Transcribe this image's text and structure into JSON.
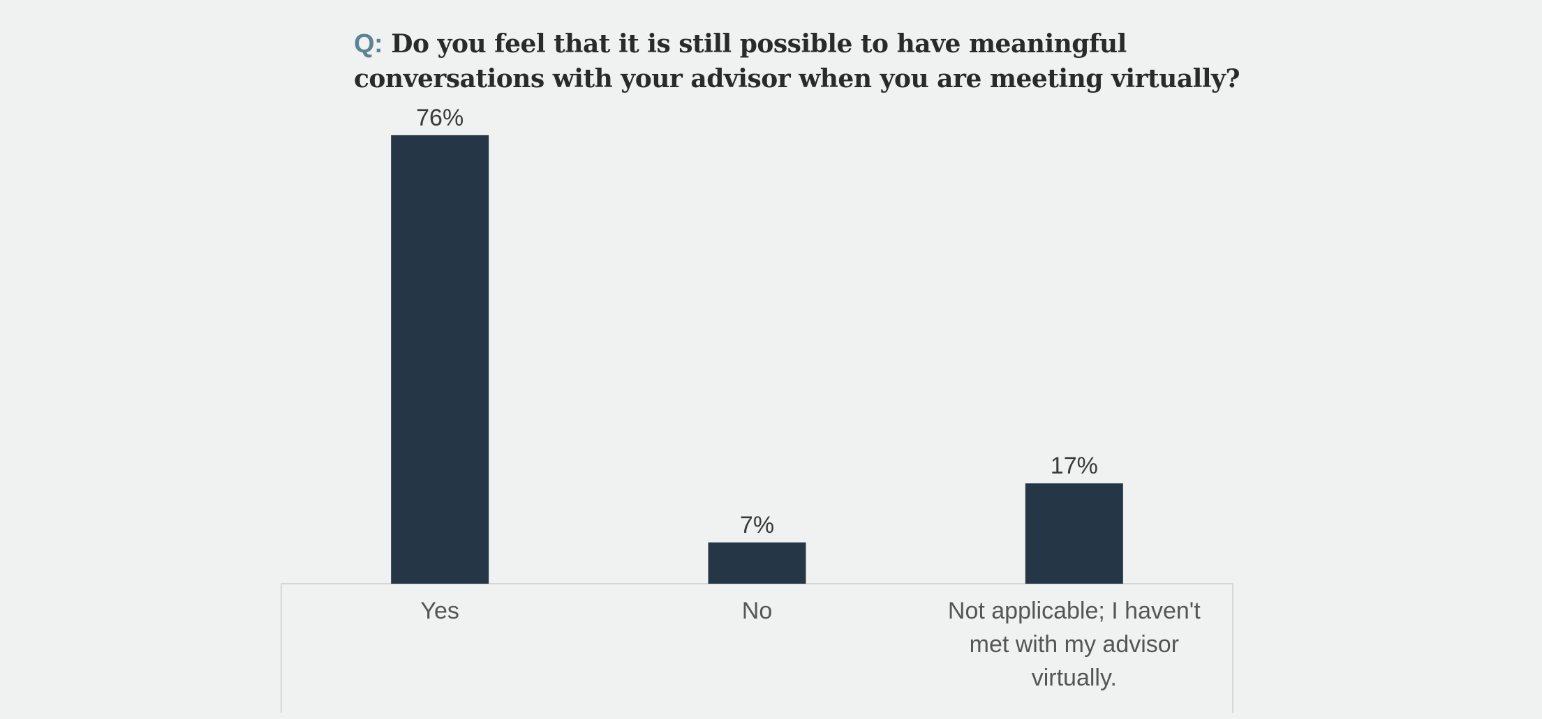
{
  "title": {
    "prefix": "Q:",
    "text": "Do you feel that it is still possible to have meaningful conversations with your advisor when you are meeting virtually?"
  },
  "colors": {
    "background": "#f0f2f1",
    "bar": "#253746",
    "prefix": "#5a8496",
    "axis": "#d4d7d6"
  },
  "chart_data": {
    "type": "bar",
    "categories": [
      "Yes",
      "No",
      "Not applicable; I haven't met with my advisor virtually."
    ],
    "category_lines": [
      [
        "Yes"
      ],
      [
        "No"
      ],
      [
        "Not applicable; I haven't",
        "met with my advisor",
        "virtually."
      ]
    ],
    "values": [
      76,
      7,
      17
    ],
    "value_labels": [
      "76%",
      "7%",
      "17%"
    ],
    "unit": "%",
    "ylim": [
      0,
      80
    ],
    "grid": false,
    "legend": "none",
    "xlabel": "",
    "ylabel": ""
  }
}
